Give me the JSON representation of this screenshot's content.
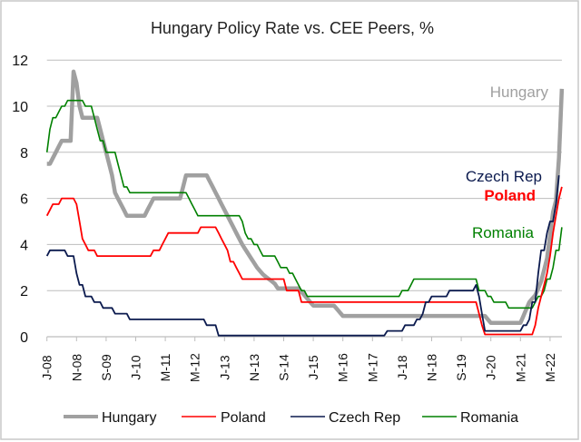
{
  "chart_data": {
    "type": "line",
    "title": "Hungary Policy Rate vs. CEE Peers, %",
    "xlabel": "",
    "ylabel": "",
    "ylim": [
      0,
      12
    ],
    "yticks": [
      "0",
      "2",
      "4",
      "6",
      "8",
      "10",
      "12"
    ],
    "xrange": [
      "2008-01",
      "2022-07"
    ],
    "xtick_labels": [
      "J-08",
      "N-08",
      "S-09",
      "J-10",
      "M-11",
      "M-12",
      "J-13",
      "N-13",
      "S-14",
      "J-15",
      "M-16",
      "M-17",
      "J-18",
      "N-18",
      "S-19",
      "J-20",
      "M-21",
      "M-22"
    ],
    "grid": true,
    "legend_position": "bottom",
    "series": [
      {
        "name": "Hungary",
        "color": "#a0a0a0",
        "inline_label": "Hungary",
        "changes": [
          [
            "2008-01",
            7.5
          ],
          [
            "2008-03",
            7.75
          ],
          [
            "2008-04",
            8.0
          ],
          [
            "2008-05",
            8.25
          ],
          [
            "2008-06",
            8.5
          ],
          [
            "2008-10",
            11.5
          ],
          [
            "2008-11",
            11.0
          ],
          [
            "2008-12",
            10.0
          ],
          [
            "2009-01",
            9.5
          ],
          [
            "2009-07",
            9.0
          ],
          [
            "2009-08",
            8.5
          ],
          [
            "2009-09",
            8.0
          ],
          [
            "2009-10",
            7.5
          ],
          [
            "2009-11",
            7.0
          ],
          [
            "2009-12",
            6.25
          ],
          [
            "2010-01",
            6.0
          ],
          [
            "2010-02",
            5.75
          ],
          [
            "2010-03",
            5.5
          ],
          [
            "2010-04",
            5.25
          ],
          [
            "2010-11",
            5.5
          ],
          [
            "2010-12",
            5.75
          ],
          [
            "2011-01",
            6.0
          ],
          [
            "2011-11",
            6.5
          ],
          [
            "2011-12",
            7.0
          ],
          [
            "2012-08",
            6.75
          ],
          [
            "2012-09",
            6.5
          ],
          [
            "2012-10",
            6.25
          ],
          [
            "2012-11",
            6.0
          ],
          [
            "2012-12",
            5.75
          ],
          [
            "2013-01",
            5.5
          ],
          [
            "2013-02",
            5.25
          ],
          [
            "2013-03",
            5.0
          ],
          [
            "2013-04",
            4.75
          ],
          [
            "2013-05",
            4.5
          ],
          [
            "2013-06",
            4.25
          ],
          [
            "2013-07",
            4.0
          ],
          [
            "2013-08",
            3.8
          ],
          [
            "2013-09",
            3.6
          ],
          [
            "2013-10",
            3.4
          ],
          [
            "2013-11",
            3.2
          ],
          [
            "2013-12",
            3.0
          ],
          [
            "2014-01",
            2.85
          ],
          [
            "2014-02",
            2.7
          ],
          [
            "2014-03",
            2.6
          ],
          [
            "2014-04",
            2.5
          ],
          [
            "2014-05",
            2.4
          ],
          [
            "2014-06",
            2.3
          ],
          [
            "2014-07",
            2.1
          ],
          [
            "2015-03",
            1.95
          ],
          [
            "2015-04",
            1.8
          ],
          [
            "2015-05",
            1.65
          ],
          [
            "2015-06",
            1.5
          ],
          [
            "2015-07",
            1.35
          ],
          [
            "2016-03",
            1.2
          ],
          [
            "2016-04",
            1.05
          ],
          [
            "2016-05",
            0.9
          ],
          [
            "2020-06",
            0.75
          ],
          [
            "2020-07",
            0.6
          ],
          [
            "2021-06",
            0.9
          ],
          [
            "2021-07",
            1.2
          ],
          [
            "2021-08",
            1.5
          ],
          [
            "2021-09",
            1.65
          ],
          [
            "2021-10",
            1.8
          ],
          [
            "2021-11",
            2.1
          ],
          [
            "2021-12",
            2.4
          ],
          [
            "2022-01",
            2.9
          ],
          [
            "2022-02",
            3.4
          ],
          [
            "2022-03",
            4.4
          ],
          [
            "2022-04",
            5.4
          ],
          [
            "2022-05",
            5.9
          ],
          [
            "2022-06",
            7.75
          ],
          [
            "2022-07",
            10.75
          ]
        ]
      },
      {
        "name": "Poland",
        "color": "#ff0000",
        "inline_label": "Poland",
        "changes": [
          [
            "2008-01",
            5.25
          ],
          [
            "2008-02",
            5.5
          ],
          [
            "2008-03",
            5.75
          ],
          [
            "2008-06",
            6.0
          ],
          [
            "2008-11",
            5.75
          ],
          [
            "2008-12",
            5.0
          ],
          [
            "2009-01",
            4.25
          ],
          [
            "2009-02",
            4.0
          ],
          [
            "2009-03",
            3.75
          ],
          [
            "2009-06",
            3.5
          ],
          [
            "2011-01",
            3.75
          ],
          [
            "2011-04",
            4.0
          ],
          [
            "2011-05",
            4.25
          ],
          [
            "2011-06",
            4.5
          ],
          [
            "2012-05",
            4.75
          ],
          [
            "2012-11",
            4.5
          ],
          [
            "2012-12",
            4.25
          ],
          [
            "2013-01",
            4.0
          ],
          [
            "2013-02",
            3.75
          ],
          [
            "2013-03",
            3.25
          ],
          [
            "2013-05",
            3.0
          ],
          [
            "2013-06",
            2.75
          ],
          [
            "2013-07",
            2.5
          ],
          [
            "2014-10",
            2.0
          ],
          [
            "2015-03",
            1.5
          ],
          [
            "2020-03",
            1.0
          ],
          [
            "2020-04",
            0.5
          ],
          [
            "2020-05",
            0.1
          ],
          [
            "2021-10",
            0.5
          ],
          [
            "2021-11",
            1.25
          ],
          [
            "2021-12",
            1.75
          ],
          [
            "2022-01",
            2.25
          ],
          [
            "2022-02",
            2.75
          ],
          [
            "2022-03",
            3.5
          ],
          [
            "2022-04",
            4.5
          ],
          [
            "2022-05",
            5.25
          ],
          [
            "2022-06",
            6.0
          ],
          [
            "2022-07",
            6.5
          ]
        ]
      },
      {
        "name": "Czech Rep",
        "color": "#0b1a4e",
        "inline_label": "Czech Rep",
        "changes": [
          [
            "2008-01",
            3.5
          ],
          [
            "2008-02",
            3.75
          ],
          [
            "2008-08",
            3.5
          ],
          [
            "2008-11",
            2.75
          ],
          [
            "2008-12",
            2.25
          ],
          [
            "2009-02",
            1.75
          ],
          [
            "2009-05",
            1.5
          ],
          [
            "2009-08",
            1.25
          ],
          [
            "2009-12",
            1.0
          ],
          [
            "2010-05",
            0.75
          ],
          [
            "2012-07",
            0.5
          ],
          [
            "2012-11",
            0.05
          ],
          [
            "2017-08",
            0.25
          ],
          [
            "2018-02",
            0.5
          ],
          [
            "2018-06",
            0.75
          ],
          [
            "2018-08",
            1.0
          ],
          [
            "2018-09",
            1.5
          ],
          [
            "2018-11",
            1.75
          ],
          [
            "2019-05",
            2.0
          ],
          [
            "2020-02",
            2.25
          ],
          [
            "2020-03",
            1.75
          ],
          [
            "2020-04",
            1.0
          ],
          [
            "2020-05",
            0.25
          ],
          [
            "2021-06",
            0.5
          ],
          [
            "2021-08",
            0.75
          ],
          [
            "2021-09",
            1.5
          ],
          [
            "2021-11",
            2.75
          ],
          [
            "2021-12",
            3.75
          ],
          [
            "2022-02",
            4.5
          ],
          [
            "2022-03",
            5.0
          ],
          [
            "2022-05",
            5.75
          ],
          [
            "2022-06",
            7.0
          ]
        ]
      },
      {
        "name": "Romania",
        "color": "#008000",
        "inline_label": "Romania",
        "changes": [
          [
            "2008-01",
            8.0
          ],
          [
            "2008-02",
            9.0
          ],
          [
            "2008-03",
            9.5
          ],
          [
            "2008-05",
            9.75
          ],
          [
            "2008-06",
            10.0
          ],
          [
            "2008-08",
            10.25
          ],
          [
            "2009-02",
            10.0
          ],
          [
            "2009-05",
            9.5
          ],
          [
            "2009-06",
            9.0
          ],
          [
            "2009-07",
            8.5
          ],
          [
            "2009-09",
            8.0
          ],
          [
            "2010-01",
            7.5
          ],
          [
            "2010-02",
            7.0
          ],
          [
            "2010-03",
            6.5
          ],
          [
            "2010-05",
            6.25
          ],
          [
            "2012-01",
            6.0
          ],
          [
            "2012-02",
            5.75
          ],
          [
            "2012-03",
            5.5
          ],
          [
            "2012-04",
            5.25
          ],
          [
            "2013-07",
            5.0
          ],
          [
            "2013-08",
            4.5
          ],
          [
            "2013-09",
            4.25
          ],
          [
            "2013-11",
            4.0
          ],
          [
            "2014-01",
            3.75
          ],
          [
            "2014-02",
            3.5
          ],
          [
            "2014-07",
            3.25
          ],
          [
            "2014-08",
            3.0
          ],
          [
            "2014-11",
            2.75
          ],
          [
            "2015-01",
            2.5
          ],
          [
            "2015-02",
            2.25
          ],
          [
            "2015-03",
            2.0
          ],
          [
            "2015-05",
            1.75
          ],
          [
            "2018-01",
            2.0
          ],
          [
            "2018-04",
            2.25
          ],
          [
            "2018-05",
            2.5
          ],
          [
            "2020-03",
            2.0
          ],
          [
            "2020-06",
            1.75
          ],
          [
            "2020-08",
            1.5
          ],
          [
            "2021-01",
            1.25
          ],
          [
            "2021-10",
            1.5
          ],
          [
            "2021-11",
            1.75
          ],
          [
            "2022-01",
            2.0
          ],
          [
            "2022-02",
            2.5
          ],
          [
            "2022-04",
            3.0
          ],
          [
            "2022-05",
            3.75
          ],
          [
            "2022-07",
            4.75
          ]
        ]
      }
    ]
  }
}
